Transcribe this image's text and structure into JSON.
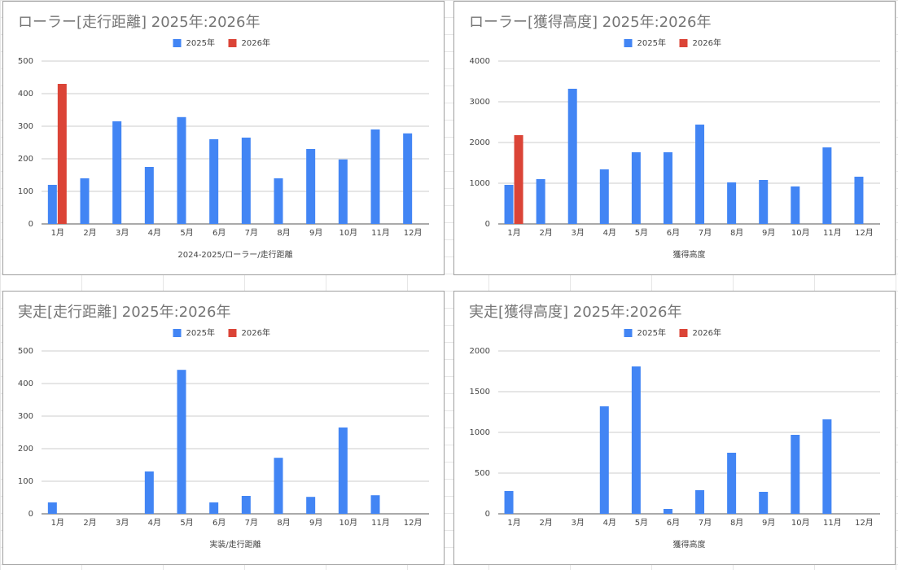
{
  "chart_data": [
    {
      "type": "bar",
      "title": "ローラー[走行距離] 2025年:2026年",
      "x_label": "2024-2025/ローラー/走行距離",
      "categories": [
        "1月",
        "2月",
        "3月",
        "4月",
        "5月",
        "6月",
        "7月",
        "8月",
        "9月",
        "10月",
        "11月",
        "12月"
      ],
      "series": [
        {
          "name": "2025年",
          "color": "#4285f4",
          "values": [
            120,
            140,
            315,
            175,
            328,
            260,
            265,
            140,
            230,
            198,
            290,
            278
          ]
        },
        {
          "name": "2026年",
          "color": "#db4437",
          "values": [
            430,
            null,
            null,
            null,
            null,
            null,
            null,
            null,
            null,
            null,
            null,
            null
          ]
        }
      ],
      "ylim": [
        0,
        500
      ],
      "yticks": [
        0,
        100,
        200,
        300,
        400,
        500
      ],
      "grid": true
    },
    {
      "type": "bar",
      "title": "ローラー[獲得高度] 2025年:2026年",
      "x_label": "獲得高度",
      "categories": [
        "1月",
        "2月",
        "3月",
        "4月",
        "5月",
        "6月",
        "7月",
        "8月",
        "9月",
        "10月",
        "11月",
        "12月"
      ],
      "series": [
        {
          "name": "2025年",
          "color": "#4285f4",
          "values": [
            960,
            1100,
            3320,
            1340,
            1760,
            1760,
            2440,
            1020,
            1080,
            920,
            1880,
            1160
          ]
        },
        {
          "name": "2026年",
          "color": "#db4437",
          "values": [
            2180,
            null,
            null,
            null,
            null,
            null,
            null,
            null,
            null,
            null,
            null,
            null
          ]
        }
      ],
      "ylim": [
        0,
        4000
      ],
      "yticks": [
        0,
        1000,
        2000,
        3000,
        4000
      ],
      "grid": true
    },
    {
      "type": "bar",
      "title": "実走[走行距離] 2025年:2026年",
      "x_label": "実装/走行距離",
      "categories": [
        "1月",
        "2月",
        "3月",
        "4月",
        "5月",
        "6月",
        "7月",
        "8月",
        "9月",
        "10月",
        "11月",
        "12月"
      ],
      "series": [
        {
          "name": "2025年",
          "color": "#4285f4",
          "values": [
            35,
            null,
            null,
            130,
            442,
            35,
            55,
            172,
            52,
            265,
            57,
            null
          ]
        },
        {
          "name": "2026年",
          "color": "#db4437",
          "values": [
            null,
            null,
            null,
            null,
            null,
            null,
            null,
            null,
            null,
            null,
            null,
            null
          ]
        }
      ],
      "ylim": [
        0,
        500
      ],
      "yticks": [
        0,
        100,
        200,
        300,
        400,
        500
      ],
      "grid": true
    },
    {
      "type": "bar",
      "title": "実走[獲得高度] 2025年:2026年",
      "x_label": "獲得高度",
      "categories": [
        "1月",
        "2月",
        "3月",
        "4月",
        "5月",
        "6月",
        "7月",
        "8月",
        "9月",
        "10月",
        "11月",
        "12月"
      ],
      "series": [
        {
          "name": "2025年",
          "color": "#4285f4",
          "values": [
            280,
            null,
            null,
            1320,
            1810,
            60,
            290,
            750,
            270,
            970,
            1160,
            null
          ]
        },
        {
          "name": "2026年",
          "color": "#db4437",
          "values": [
            null,
            null,
            null,
            null,
            null,
            null,
            null,
            null,
            null,
            null,
            null,
            null
          ]
        }
      ],
      "ylim": [
        0,
        2000
      ],
      "yticks": [
        0,
        500,
        1000,
        1500,
        2000
      ],
      "grid": true
    }
  ]
}
